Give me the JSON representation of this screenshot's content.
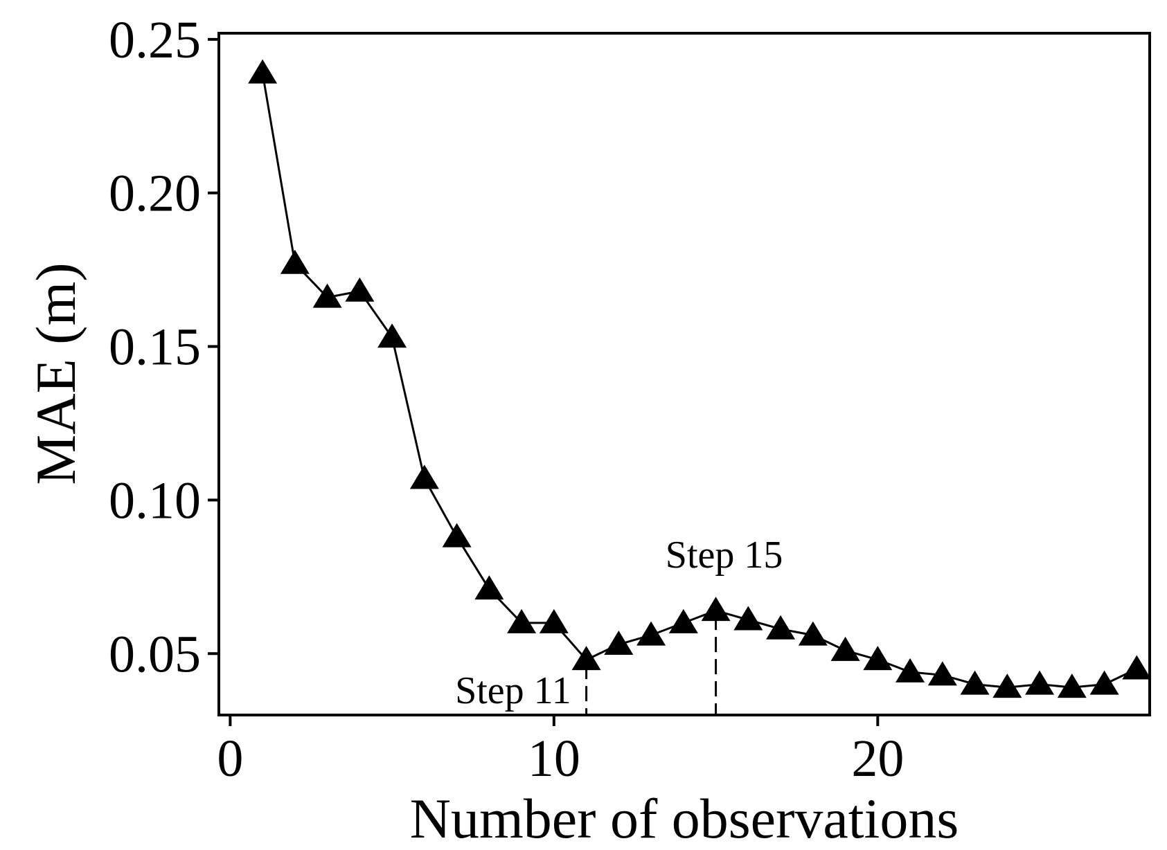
{
  "chart_data": {
    "type": "line",
    "marker": "triangle",
    "color": "#000000",
    "xlabel": "Number of observations",
    "ylabel": "MAE (m)",
    "xlim": [
      -0.35,
      28.4
    ],
    "ylim": [
      0.03,
      0.252
    ],
    "xticks": [
      0,
      10,
      20
    ],
    "xtick_labels": [
      "0",
      "10",
      "20"
    ],
    "yticks": [
      0.05,
      0.1,
      0.15,
      0.2,
      0.25
    ],
    "ytick_labels": [
      "0.05",
      "0.10",
      "0.15",
      "0.20",
      "0.25"
    ],
    "grid": false,
    "series": [
      {
        "x": [
          1,
          2,
          3,
          4,
          5,
          6,
          7,
          8,
          9,
          10,
          11,
          12,
          13,
          14,
          15,
          16,
          17,
          18,
          19,
          20,
          21,
          22,
          23,
          24,
          25,
          26,
          27,
          28
        ],
        "values": [
          0.239,
          0.177,
          0.166,
          0.168,
          0.153,
          0.107,
          0.088,
          0.071,
          0.06,
          0.06,
          0.048,
          0.053,
          0.056,
          0.06,
          0.064,
          0.061,
          0.058,
          0.056,
          0.051,
          0.048,
          0.044,
          0.043,
          0.04,
          0.039,
          0.04,
          0.039,
          0.04,
          0.045
        ]
      }
    ],
    "annotations": [
      {
        "text": "Step 11",
        "x": 11,
        "y": 0.048,
        "line": "dashed"
      },
      {
        "text": "Step 15",
        "x": 15,
        "y": 0.064,
        "line": "dashed"
      }
    ]
  }
}
